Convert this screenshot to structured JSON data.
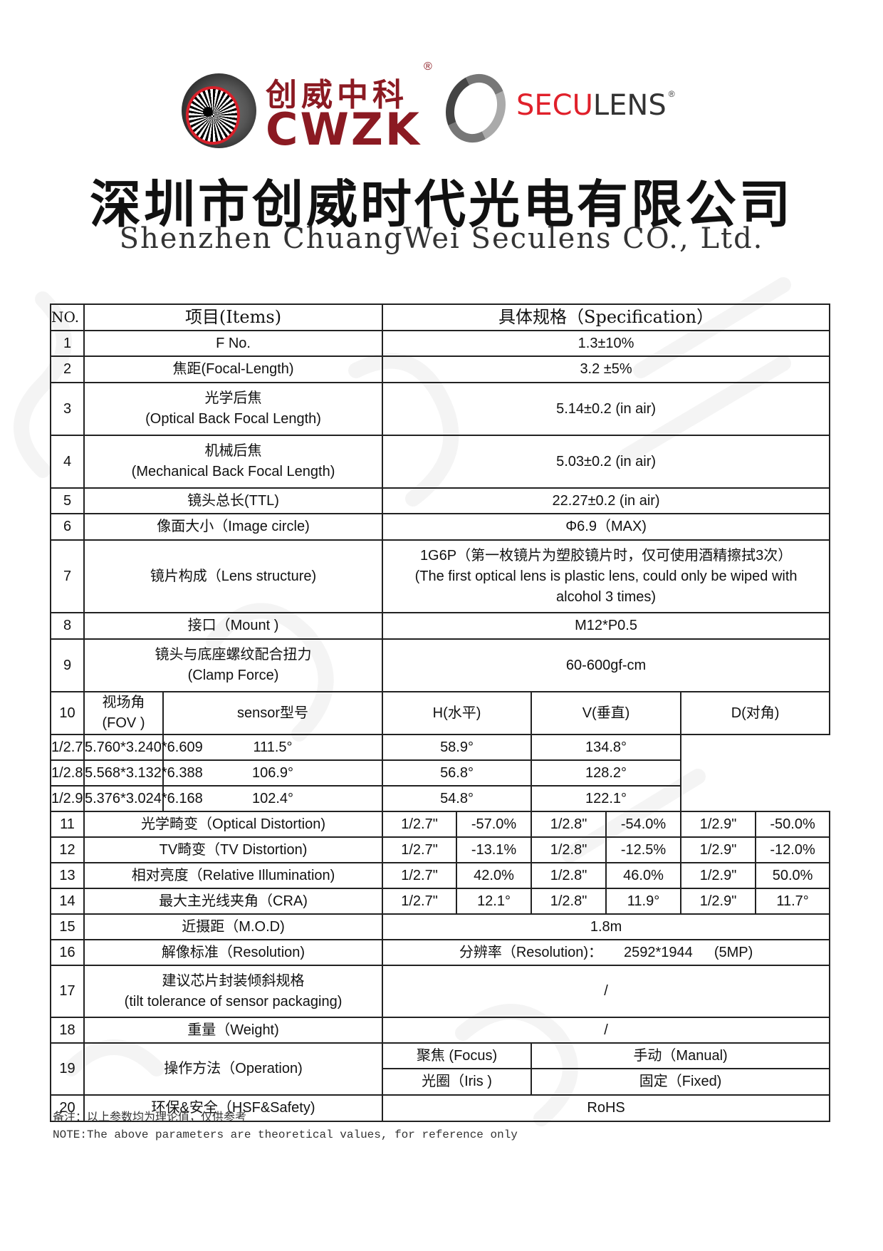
{
  "header": {
    "cwzk_cn": "创威中科",
    "cwzk_en": "CWZK",
    "reg": "®",
    "seculens_red": "SECU",
    "seculens_gray": "LENS",
    "company_cn": "深圳市创威时代光电有限公司",
    "company_en": "Shenzhen ChuangWei Seculens CO., Ltd."
  },
  "watermark": "SECULENS",
  "table": {
    "head": {
      "no": "NO.",
      "items": "项目(Items)",
      "spec": "具体规格（Specification）"
    },
    "rows": [
      {
        "no": "1",
        "item": "F No.",
        "spec": "1.3±10%"
      },
      {
        "no": "2",
        "item": "焦距(Focal-Length)",
        "spec": "3.2 ±5%"
      },
      {
        "no": "3",
        "item": "光学后焦",
        "item_en": "(Optical Back Focal Length)",
        "spec": "5.14±0.2 (in  air)"
      },
      {
        "no": "4",
        "item": "机械后焦",
        "item_en": "(Mechanical Back Focal Length)",
        "spec": "5.03±0.2 (in  air)"
      },
      {
        "no": "5",
        "item": "镜头总长(TTL)",
        "spec": "22.27±0.2  (in air)"
      },
      {
        "no": "6",
        "item": "像面大小（Image circle)",
        "spec": "Φ6.9（MAX)"
      },
      {
        "no": "7",
        "item": "镜片构成（Lens structure)",
        "spec": "1G6P（第一枚镜片为塑胶镜片时，仅可使用酒精擦拭3次）",
        "spec_en": "(The first optical lens is plastic lens, could only be wiped with alcohol 3 times)"
      },
      {
        "no": "8",
        "item": "接口（Mount )",
        "spec": "M12*P0.5"
      },
      {
        "no": "9",
        "item": "镜头与底座螺纹配合扭力",
        "item_en": "(Clamp Force)",
        "spec": "60-600gf-cm"
      }
    ],
    "fov": {
      "no": "10",
      "label": "视场角",
      "label_en": "(FOV )",
      "head": {
        "sensor": "sensor型号",
        "h": "H(水平)",
        "v": "V(垂直)",
        "d": "D(对角)"
      },
      "rows": [
        {
          "size": "1/2.7\"",
          "dims": "5.760*3.240*6.609",
          "h": "111.5°",
          "v": "58.9°",
          "d": "134.8°"
        },
        {
          "size": "1/2.8\"",
          "dims": "5.568*3.132*6.388",
          "h": "106.9°",
          "v": "56.8°",
          "d": "128.2°"
        },
        {
          "size": "1/2.9\"",
          "dims": "5.376*3.024*6.168",
          "h": "102.4°",
          "v": "54.8°",
          "d": "122.1°"
        }
      ]
    },
    "multi": [
      {
        "no": "11",
        "item": "光学畸变（Optical Distortion)",
        "vals": [
          "1/2.7\"",
          "-57.0%",
          "1/2.8\"",
          "-54.0%",
          "1/2.9\"",
          "-50.0%"
        ]
      },
      {
        "no": "12",
        "item": "TV畸变（TV Distortion)",
        "vals": [
          "1/2.7\"",
          "-13.1%",
          "1/2.8\"",
          "-12.5%",
          "1/2.9\"",
          "-12.0%"
        ]
      },
      {
        "no": "13",
        "item": "相对亮度（Relative Illumination)",
        "vals": [
          "1/2.7\"",
          "42.0%",
          "1/2.8\"",
          "46.0%",
          "1/2.9\"",
          "50.0%"
        ]
      },
      {
        "no": "14",
        "item": "最大主光线夹角（CRA)",
        "vals": [
          "1/2.7\"",
          "12.1°",
          "1/2.8\"",
          "11.9°",
          "1/2.9\"",
          "11.7°"
        ]
      }
    ],
    "rows2": [
      {
        "no": "15",
        "item": "近摄距（M.O.D)",
        "spec": "1.8m"
      },
      {
        "no": "16",
        "item": "解像标准（Resolution)",
        "spec_a": "分辨率（Resolution)：",
        "spec_b": "2592*1944",
        "spec_c": "(5MP)"
      },
      {
        "no": "17",
        "item": "建议芯片封装倾斜规格",
        "item_en": "(tilt tolerance of sensor packaging)",
        "spec": "/"
      },
      {
        "no": "18",
        "item": "重量（Weight)",
        "spec": "/"
      }
    ],
    "operation": {
      "no": "19",
      "item": "操作方法（Operation)",
      "focus": "聚焦 (Focus)",
      "focus_val": "手动（Manual)",
      "iris": "光圈（Iris )",
      "iris_val": "固定（Fixed)"
    },
    "last": {
      "no": "20",
      "item": "环保&安全（HSF&Safety)",
      "spec": "RoHS"
    }
  },
  "notes": {
    "cn": "备注：以上参数均为理论值，仅供参考",
    "en": "NOTE:The above parameters are theoretical values, for reference only"
  }
}
